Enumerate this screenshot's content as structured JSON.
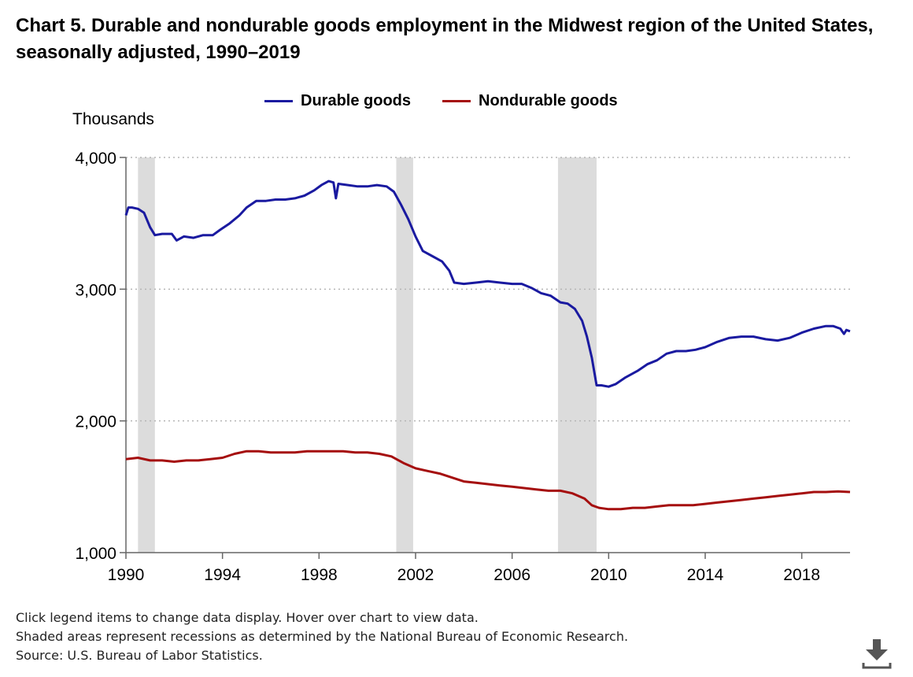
{
  "title": "Chart 5. Durable and nondurable goods employment in the Midwest region of the United States, seasonally adjusted, 1990–2019",
  "legend": {
    "durable_label": "Durable goods",
    "nondurable_label": "Nondurable goods"
  },
  "notes": [
    "Click legend items to change data display. Hover over chart to view data.",
    "Shaded areas represent recessions as determined by the National Bureau of Economic Research.",
    "Source: U.S. Bureau of Labor Statistics."
  ],
  "download_icon": "download-icon",
  "chart_data": {
    "type": "line",
    "ylabel": "Thousands",
    "xlim": [
      1990,
      2020
    ],
    "ylim": [
      1000,
      4000
    ],
    "x_ticks": [
      1990,
      1994,
      1998,
      2002,
      2006,
      2010,
      2014,
      2018
    ],
    "x_tick_labels": [
      "1990",
      "1994",
      "1998",
      "2002",
      "2006",
      "2010",
      "2014",
      "2018"
    ],
    "y_ticks": [
      1000,
      2000,
      3000,
      4000
    ],
    "y_tick_labels": [
      "1,000",
      "2,000",
      "3,000",
      "4,000"
    ],
    "grid": "horizontal dotted",
    "legend_position": "top-center",
    "recessions": [
      {
        "start": 1990.5,
        "end": 1991.2
      },
      {
        "start": 2001.2,
        "end": 2001.9
      },
      {
        "start": 2007.9,
        "end": 2009.5
      }
    ],
    "series": [
      {
        "name": "Durable goods",
        "color": "#1a1aa0",
        "points": [
          [
            1990.0,
            3560
          ],
          [
            1990.1,
            3620
          ],
          [
            1990.25,
            3620
          ],
          [
            1990.5,
            3610
          ],
          [
            1990.75,
            3580
          ],
          [
            1991.0,
            3470
          ],
          [
            1991.2,
            3410
          ],
          [
            1991.5,
            3420
          ],
          [
            1991.9,
            3420
          ],
          [
            1992.1,
            3370
          ],
          [
            1992.4,
            3400
          ],
          [
            1992.8,
            3390
          ],
          [
            1993.2,
            3410
          ],
          [
            1993.6,
            3410
          ],
          [
            1993.9,
            3450
          ],
          [
            1994.3,
            3500
          ],
          [
            1994.7,
            3560
          ],
          [
            1995.0,
            3620
          ],
          [
            1995.4,
            3670
          ],
          [
            1995.8,
            3670
          ],
          [
            1996.2,
            3680
          ],
          [
            1996.6,
            3680
          ],
          [
            1997.0,
            3690
          ],
          [
            1997.4,
            3710
          ],
          [
            1997.8,
            3750
          ],
          [
            1998.1,
            3790
          ],
          [
            1998.4,
            3820
          ],
          [
            1998.6,
            3810
          ],
          [
            1998.7,
            3690
          ],
          [
            1998.8,
            3800
          ],
          [
            1999.2,
            3790
          ],
          [
            1999.6,
            3780
          ],
          [
            2000.0,
            3780
          ],
          [
            2000.4,
            3790
          ],
          [
            2000.8,
            3780
          ],
          [
            2001.1,
            3740
          ],
          [
            2001.4,
            3640
          ],
          [
            2001.7,
            3530
          ],
          [
            2002.0,
            3400
          ],
          [
            2002.3,
            3290
          ],
          [
            2002.7,
            3250
          ],
          [
            2003.1,
            3210
          ],
          [
            2003.4,
            3140
          ],
          [
            2003.6,
            3050
          ],
          [
            2004.0,
            3040
          ],
          [
            2004.5,
            3050
          ],
          [
            2005.0,
            3060
          ],
          [
            2005.5,
            3050
          ],
          [
            2006.0,
            3040
          ],
          [
            2006.4,
            3040
          ],
          [
            2006.8,
            3010
          ],
          [
            2007.2,
            2970
          ],
          [
            2007.6,
            2950
          ],
          [
            2008.0,
            2900
          ],
          [
            2008.3,
            2890
          ],
          [
            2008.6,
            2850
          ],
          [
            2008.9,
            2760
          ],
          [
            2009.1,
            2640
          ],
          [
            2009.3,
            2480
          ],
          [
            2009.5,
            2270
          ],
          [
            2009.7,
            2270
          ],
          [
            2010.0,
            2260
          ],
          [
            2010.3,
            2280
          ],
          [
            2010.7,
            2330
          ],
          [
            2011.2,
            2380
          ],
          [
            2011.6,
            2430
          ],
          [
            2012.0,
            2460
          ],
          [
            2012.4,
            2510
          ],
          [
            2012.8,
            2530
          ],
          [
            2013.2,
            2530
          ],
          [
            2013.6,
            2540
          ],
          [
            2014.0,
            2560
          ],
          [
            2014.5,
            2600
          ],
          [
            2015.0,
            2630
          ],
          [
            2015.5,
            2640
          ],
          [
            2016.0,
            2640
          ],
          [
            2016.5,
            2620
          ],
          [
            2017.0,
            2610
          ],
          [
            2017.5,
            2630
          ],
          [
            2018.0,
            2670
          ],
          [
            2018.5,
            2700
          ],
          [
            2019.0,
            2720
          ],
          [
            2019.3,
            2720
          ],
          [
            2019.6,
            2700
          ],
          [
            2019.75,
            2660
          ],
          [
            2019.85,
            2690
          ],
          [
            2020.0,
            2680
          ]
        ]
      },
      {
        "name": "Nondurable goods",
        "color": "#a50e0e",
        "points": [
          [
            1990.0,
            1710
          ],
          [
            1990.5,
            1720
          ],
          [
            1991.0,
            1700
          ],
          [
            1991.5,
            1700
          ],
          [
            1992.0,
            1690
          ],
          [
            1992.5,
            1700
          ],
          [
            1993.0,
            1700
          ],
          [
            1993.5,
            1710
          ],
          [
            1994.0,
            1720
          ],
          [
            1994.5,
            1750
          ],
          [
            1995.0,
            1770
          ],
          [
            1995.5,
            1770
          ],
          [
            1996.0,
            1760
          ],
          [
            1996.5,
            1760
          ],
          [
            1997.0,
            1760
          ],
          [
            1997.5,
            1770
          ],
          [
            1998.0,
            1770
          ],
          [
            1998.5,
            1770
          ],
          [
            1999.0,
            1770
          ],
          [
            1999.5,
            1760
          ],
          [
            2000.0,
            1760
          ],
          [
            2000.5,
            1750
          ],
          [
            2001.0,
            1730
          ],
          [
            2001.5,
            1680
          ],
          [
            2002.0,
            1640
          ],
          [
            2002.5,
            1620
          ],
          [
            2003.0,
            1600
          ],
          [
            2003.5,
            1570
          ],
          [
            2004.0,
            1540
          ],
          [
            2004.5,
            1530
          ],
          [
            2005.0,
            1520
          ],
          [
            2005.5,
            1510
          ],
          [
            2006.0,
            1500
          ],
          [
            2006.5,
            1490
          ],
          [
            2007.0,
            1480
          ],
          [
            2007.5,
            1470
          ],
          [
            2008.0,
            1470
          ],
          [
            2008.5,
            1450
          ],
          [
            2009.0,
            1410
          ],
          [
            2009.3,
            1360
          ],
          [
            2009.6,
            1340
          ],
          [
            2010.0,
            1330
          ],
          [
            2010.5,
            1330
          ],
          [
            2011.0,
            1340
          ],
          [
            2011.5,
            1340
          ],
          [
            2012.0,
            1350
          ],
          [
            2012.5,
            1360
          ],
          [
            2013.0,
            1360
          ],
          [
            2013.5,
            1360
          ],
          [
            2014.0,
            1370
          ],
          [
            2014.5,
            1380
          ],
          [
            2015.0,
            1390
          ],
          [
            2015.5,
            1400
          ],
          [
            2016.0,
            1410
          ],
          [
            2016.5,
            1420
          ],
          [
            2017.0,
            1430
          ],
          [
            2017.5,
            1440
          ],
          [
            2018.0,
            1450
          ],
          [
            2018.5,
            1460
          ],
          [
            2019.0,
            1460
          ],
          [
            2019.5,
            1465
          ],
          [
            2020.0,
            1460
          ]
        ]
      }
    ]
  }
}
